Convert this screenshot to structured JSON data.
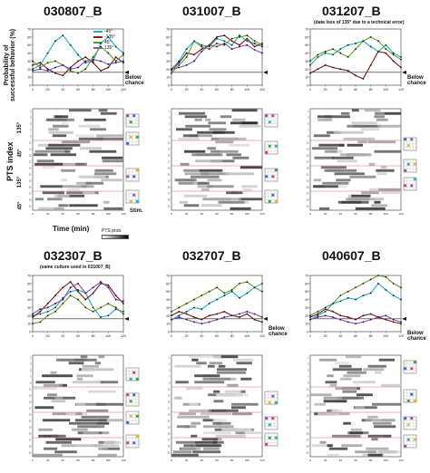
{
  "titles": [
    "030807_B",
    "031007_B",
    "031207_B",
    "032307_B",
    "032707_B",
    "040607_B"
  ],
  "notes": {
    "031207_B": "(data loss of 135° due to a technical error)",
    "032307_B": "(same culture used in 031007_B)"
  },
  "labels": {
    "prob_y_axis": "Probability of\nsuccessful behavior (%)",
    "pts_y_axis": "PTS index",
    "time_x_axis": "Time (min)",
    "below_chance": "Below\nchance",
    "stim": "Stim.",
    "pts_prob": "PTS prob."
  },
  "angle_labels": [
    "135°",
    "45°",
    "135°",
    "45°"
  ],
  "legend": [
    {
      "label": "-45°",
      "color": "#1ab0c8"
    },
    {
      "label": "-135°",
      "color": "#8a2020"
    },
    {
      "label": "45°",
      "color": "#5c9a2a"
    },
    {
      "label": "135°",
      "color": "#8a4cc0"
    }
  ],
  "series_colors": {
    "cyan": "#1ab0c8",
    "darkred": "#7a1818",
    "olive": "#6a9a2a",
    "purple": "#8a4cc0"
  },
  "chart_data": [
    {
      "type": "line",
      "title": "030807_B",
      "x": [
        0,
        10,
        20,
        30,
        40,
        50,
        60,
        70,
        80,
        90,
        100,
        110,
        120
      ],
      "series": [
        {
          "color": "cyan",
          "values": [
            20,
            25,
            40,
            55,
            62,
            50,
            38,
            28,
            30,
            52,
            60,
            48,
            40
          ]
        },
        {
          "color": "darkred",
          "values": [
            25,
            28,
            20,
            15,
            12,
            22,
            30,
            35,
            28,
            18,
            22,
            35,
            28
          ]
        },
        {
          "color": "olive",
          "values": [
            30,
            22,
            28,
            30,
            25,
            18,
            15,
            20,
            35,
            48,
            40,
            30,
            38
          ]
        },
        {
          "color": "purple",
          "values": [
            18,
            20,
            18,
            22,
            25,
            20,
            22,
            30,
            32,
            30,
            26,
            28,
            30
          ]
        }
      ],
      "xlim": [
        0,
        120
      ],
      "ylim": [
        0,
        70
      ],
      "xticks": [
        0,
        20,
        40,
        60,
        80,
        100,
        120
      ],
      "yticks": [
        0,
        10,
        20,
        30,
        40,
        50,
        60,
        70
      ],
      "chance": 16
    },
    {
      "type": "line",
      "title": "031007_B",
      "x": [
        0,
        10,
        20,
        30,
        40,
        50,
        60,
        70,
        80,
        90,
        100,
        110,
        120
      ],
      "series": [
        {
          "color": "cyan",
          "values": [
            20,
            30,
            45,
            55,
            50,
            48,
            58,
            55,
            50,
            62,
            55,
            52,
            48
          ]
        },
        {
          "color": "darkred",
          "values": [
            18,
            28,
            40,
            38,
            45,
            50,
            60,
            62,
            55,
            50,
            58,
            48,
            52
          ]
        },
        {
          "color": "olive",
          "values": [
            15,
            25,
            35,
            55,
            48,
            45,
            52,
            50,
            58,
            60,
            62,
            55,
            50
          ]
        },
        {
          "color": "purple",
          "values": [
            20,
            22,
            25,
            30,
            42,
            50,
            48,
            52,
            45,
            48,
            50,
            44,
            40
          ]
        }
      ],
      "xlim": [
        0,
        120
      ],
      "ylim": [
        0,
        70
      ],
      "xticks": [
        0,
        20,
        40,
        60,
        80,
        100,
        120
      ],
      "yticks": [
        0,
        10,
        20,
        30,
        40,
        50,
        60,
        70
      ],
      "chance": 16
    },
    {
      "type": "line",
      "title": "031207_B",
      "x": [
        0,
        10,
        20,
        30,
        40,
        50,
        60,
        70,
        80,
        90,
        100,
        110,
        120
      ],
      "series": [
        {
          "color": "cyan",
          "values": [
            25,
            35,
            40,
            38,
            45,
            50,
            52,
            55,
            48,
            42,
            50,
            40,
            35
          ]
        },
        {
          "color": "darkred",
          "values": [
            15,
            20,
            25,
            22,
            20,
            18,
            12,
            8,
            25,
            42,
            40,
            30,
            22
          ]
        },
        {
          "color": "olive",
          "values": [
            30,
            38,
            42,
            45,
            40,
            35,
            45,
            55,
            60,
            55,
            45,
            38,
            32
          ]
        }
      ],
      "xlim": [
        0,
        120
      ],
      "ylim": [
        0,
        70
      ],
      "xticks": [
        0,
        20,
        40,
        60,
        80,
        100,
        120
      ],
      "yticks": [
        0,
        10,
        20,
        30,
        40,
        50,
        60,
        70
      ],
      "chance": 16
    },
    {
      "type": "line",
      "title": "032307_B",
      "x": [
        0,
        10,
        20,
        30,
        40,
        50,
        60,
        70,
        80,
        90,
        100,
        110,
        120
      ],
      "series": [
        {
          "color": "cyan",
          "values": [
            20,
            22,
            25,
            30,
            42,
            50,
            52,
            48,
            30,
            18,
            20,
            28,
            25
          ]
        },
        {
          "color": "darkred",
          "values": [
            18,
            25,
            35,
            45,
            55,
            62,
            50,
            40,
            48,
            60,
            58,
            45,
            35
          ]
        },
        {
          "color": "olive",
          "values": [
            10,
            12,
            20,
            25,
            35,
            45,
            40,
            30,
            25,
            30,
            35,
            30,
            22
          ]
        },
        {
          "color": "purple",
          "values": [
            22,
            28,
            30,
            35,
            40,
            55,
            60,
            48,
            55,
            62,
            55,
            40,
            38
          ]
        }
      ],
      "xlim": [
        0,
        120
      ],
      "ylim": [
        0,
        70
      ],
      "xticks": [
        0,
        20,
        40,
        60,
        80,
        100,
        120
      ],
      "yticks": [
        0,
        10,
        20,
        30,
        40,
        50,
        60,
        70
      ],
      "chance": 16
    },
    {
      "type": "line",
      "title": "032707_B",
      "x": [
        0,
        10,
        20,
        30,
        40,
        50,
        60,
        70,
        80,
        90,
        100,
        110,
        120
      ],
      "series": [
        {
          "color": "cyan",
          "values": [
            15,
            20,
            25,
            30,
            28,
            35,
            40,
            45,
            50,
            42,
            48,
            55,
            60
          ]
        },
        {
          "color": "darkred",
          "values": [
            20,
            25,
            22,
            18,
            15,
            20,
            22,
            25,
            20,
            18,
            22,
            15,
            12
          ]
        },
        {
          "color": "olive",
          "values": [
            25,
            30,
            35,
            40,
            45,
            50,
            55,
            48,
            52,
            60,
            62,
            55,
            50
          ]
        },
        {
          "color": "purple",
          "values": [
            15,
            18,
            15,
            12,
            10,
            12,
            15,
            18,
            20,
            22,
            25,
            22,
            18
          ]
        }
      ],
      "xlim": [
        0,
        120
      ],
      "ylim": [
        0,
        70
      ],
      "xticks": [
        0,
        20,
        40,
        60,
        80,
        100,
        120
      ],
      "yticks": [
        0,
        10,
        20,
        30,
        40,
        50,
        60,
        70
      ],
      "chance": 16
    },
    {
      "type": "line",
      "title": "040607_B",
      "x": [
        0,
        10,
        20,
        30,
        40,
        50,
        60,
        70,
        80,
        90,
        100,
        110,
        120
      ],
      "series": [
        {
          "color": "cyan",
          "values": [
            15,
            20,
            25,
            35,
            38,
            42,
            40,
            45,
            48,
            60,
            52,
            45,
            40
          ]
        },
        {
          "color": "darkred",
          "values": [
            18,
            22,
            28,
            25,
            20,
            18,
            15,
            20,
            22,
            18,
            15,
            12,
            10
          ]
        },
        {
          "color": "olive",
          "values": [
            20,
            25,
            30,
            35,
            45,
            50,
            55,
            60,
            65,
            70,
            68,
            60,
            55
          ]
        },
        {
          "color": "purple",
          "values": [
            15,
            18,
            20,
            18,
            15,
            12,
            10,
            12,
            15,
            18,
            20,
            15,
            12
          ]
        }
      ],
      "xlim": [
        0,
        120
      ],
      "ylim": [
        0,
        70
      ],
      "xticks": [
        0,
        20,
        40,
        60,
        80,
        100,
        120
      ],
      "yticks": [
        0,
        10,
        20,
        30,
        40,
        50,
        60,
        70
      ],
      "chance": 16
    }
  ]
}
